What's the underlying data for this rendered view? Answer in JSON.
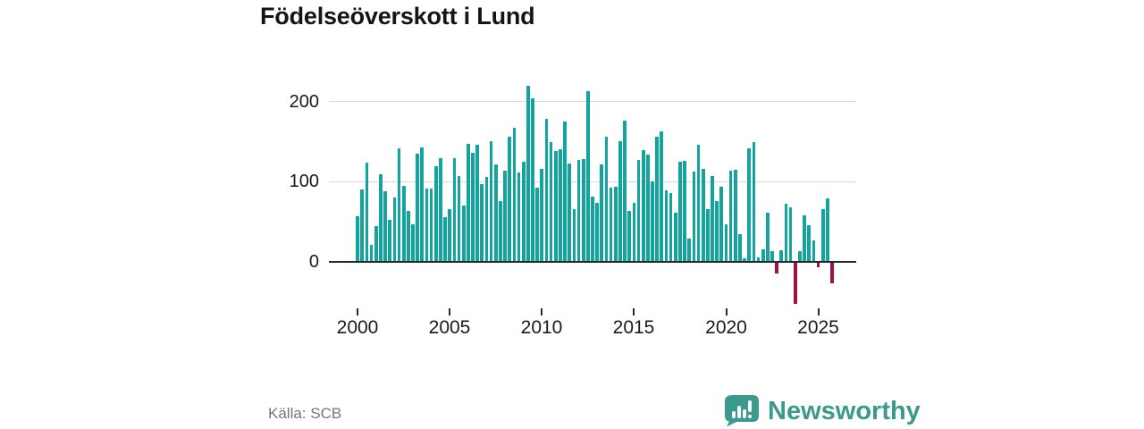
{
  "title": "Födelseöverskott i Lund",
  "source": "Källa: SCB",
  "branding": {
    "name": "Newsworthy"
  },
  "colors": {
    "positive_bar": "#12a49d",
    "negative_bar": "#a01243",
    "axis_line": "#21292b",
    "grid_line": "#d8d8d8",
    "label_text": "#1a1a1a",
    "muted_text": "#757575",
    "brand_teal": "#3a9a8c"
  },
  "chart_data": {
    "type": "bar",
    "title": "Födelseöverskott i Lund",
    "frequency": "quarterly",
    "x_start": "2000 Q1",
    "x_end": "2025 Q4",
    "x_tick_labels": [
      "2000",
      "2005",
      "2010",
      "2015",
      "2020",
      "2025"
    ],
    "y_tick_labels": [
      "0",
      "100",
      "200"
    ],
    "y_ticks": [
      0,
      100,
      200
    ],
    "ylim": [
      -60,
      230
    ],
    "grid": "horizontal",
    "legend": "none",
    "values": [
      56,
      89,
      122,
      20,
      43,
      108,
      87,
      51,
      79,
      140,
      93,
      62,
      46,
      133,
      141,
      90,
      90,
      118,
      128,
      54,
      65,
      128,
      106,
      69,
      146,
      135,
      145,
      96,
      105,
      149,
      120,
      75,
      112,
      154,
      166,
      110,
      123,
      218,
      202,
      91,
      115,
      177,
      148,
      137,
      139,
      173,
      121,
      64,
      126,
      127,
      211,
      80,
      72,
      120,
      155,
      91,
      92,
      149,
      174,
      62,
      72,
      126,
      138,
      132,
      99,
      154,
      161,
      88,
      85,
      60,
      123,
      125,
      28,
      111,
      145,
      115,
      65,
      106,
      74,
      92,
      46,
      112,
      113,
      33,
      3,
      140,
      148,
      4,
      15,
      60,
      12,
      -13,
      13,
      71,
      67,
      -51,
      12,
      57,
      44,
      26,
      -6,
      64,
      78,
      -26
    ]
  }
}
